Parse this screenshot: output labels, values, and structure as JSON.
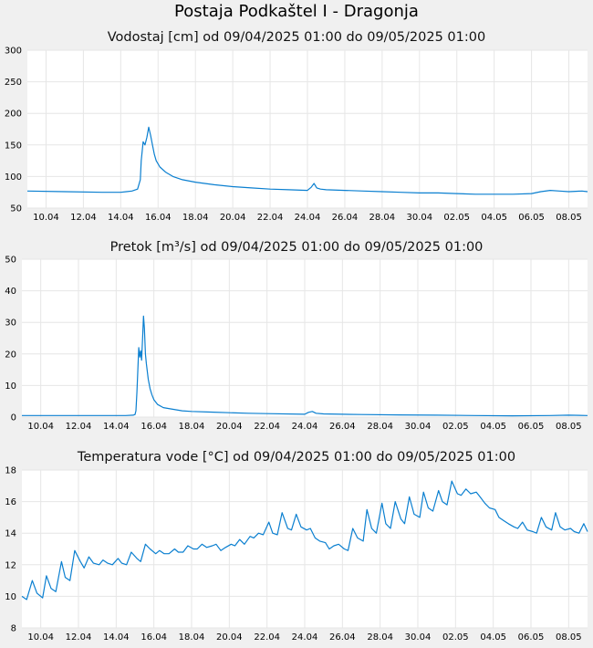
{
  "page": {
    "title": "Postaja Podkaštel I - Dragonja"
  },
  "chart_data": [
    {
      "type": "line",
      "title": "Vodostaj [cm] od 09/04/2025 01:00 do 09/05/2025 01:00",
      "x_ticks": [
        "10.04",
        "12.04",
        "14.04",
        "16.04",
        "18.04",
        "20.04",
        "22.04",
        "24.04",
        "26.04",
        "28.04",
        "30.04",
        "02.05",
        "04.05",
        "06.05",
        "08.05"
      ],
      "y_ticks": [
        "50",
        "100",
        "150",
        "200",
        "250",
        "300"
      ],
      "ylim": [
        50,
        300
      ],
      "grid": true,
      "color": "#0a7fd0",
      "series": [
        {
          "x": [
            0,
            2,
            4,
            5,
            5.3,
            5.6,
            5.9,
            6.05,
            6.1,
            6.2,
            6.3,
            6.4,
            6.5,
            6.6,
            6.7,
            6.8,
            6.9,
            7.1,
            7.4,
            7.8,
            8.3,
            9,
            10,
            11,
            12,
            13,
            14,
            15,
            15.2,
            15.35,
            15.5,
            15.7,
            16,
            17,
            18,
            19,
            20,
            21,
            22,
            23,
            24,
            25,
            26,
            27,
            27.5,
            28,
            28.5,
            29,
            29.7,
            30
          ],
          "y": [
            77,
            76,
            75,
            75,
            76,
            77,
            80,
            95,
            125,
            155,
            150,
            162,
            178,
            165,
            150,
            135,
            125,
            115,
            107,
            100,
            95,
            91,
            87,
            84,
            82,
            80,
            79,
            78,
            83,
            89,
            82,
            80,
            79,
            78,
            77,
            76,
            75,
            74,
            74,
            73,
            72,
            72,
            72,
            73,
            76,
            78,
            77,
            76,
            77,
            76
          ]
        }
      ]
    },
    {
      "type": "line",
      "title": "Pretok [m³/s] od 09/04/2025 01:00 do 09/05/2025 01:00",
      "x_ticks": [
        "10.04",
        "12.04",
        "14.04",
        "16.04",
        "18.04",
        "20.04",
        "22.04",
        "24.04",
        "26.04",
        "28.04",
        "30.04",
        "02.05",
        "04.05",
        "06.05",
        "08.05"
      ],
      "y_ticks": [
        "0",
        "10",
        "20",
        "30",
        "40",
        "50"
      ],
      "ylim": [
        0,
        50
      ],
      "grid": true,
      "color": "#0a7fd0",
      "series": [
        {
          "x": [
            0,
            2,
            4,
            5,
            5.5,
            5.9,
            6.0,
            6.05,
            6.1,
            6.15,
            6.2,
            6.25,
            6.3,
            6.35,
            6.4,
            6.45,
            6.5,
            6.55,
            6.6,
            6.7,
            6.8,
            6.9,
            7.0,
            7.2,
            7.5,
            8,
            8.5,
            9,
            10,
            11,
            12,
            13,
            15,
            15.2,
            15.4,
            15.6,
            16,
            17,
            18,
            20,
            22,
            24,
            26,
            28,
            29,
            30
          ],
          "y": [
            0.5,
            0.5,
            0.5,
            0.5,
            0.5,
            0.6,
            0.8,
            2,
            8,
            15,
            22,
            19,
            21,
            18,
            25,
            32,
            28,
            20,
            17,
            12,
            9,
            7,
            5.5,
            4,
            3,
            2.5,
            2,
            1.8,
            1.6,
            1.4,
            1.2,
            1.1,
            0.9,
            1.5,
            1.8,
            1.2,
            1.0,
            0.9,
            0.8,
            0.7,
            0.6,
            0.5,
            0.4,
            0.5,
            0.6,
            0.5
          ]
        }
      ]
    },
    {
      "type": "line",
      "title": "Temperatura vode [°C] od 09/04/2025 01:00 do 09/05/2025 01:00",
      "x_ticks": [
        "10.04",
        "12.04",
        "14.04",
        "16.04",
        "18.04",
        "20.04",
        "22.04",
        "24.04",
        "26.04",
        "28.04",
        "30.04",
        "02.05",
        "04.05",
        "06.05",
        "08.05"
      ],
      "y_ticks": [
        "8",
        "10",
        "12",
        "14",
        "16",
        "18"
      ],
      "ylim": [
        8,
        18
      ],
      "grid": true,
      "color": "#0a7fd0",
      "series": [
        {
          "x": [
            0,
            0.25,
            0.55,
            0.8,
            1.1,
            1.3,
            1.55,
            1.8,
            2.1,
            2.3,
            2.55,
            2.8,
            3.1,
            3.3,
            3.55,
            3.8,
            4.1,
            4.3,
            4.55,
            4.8,
            5.1,
            5.3,
            5.55,
            5.8,
            6.1,
            6.3,
            6.55,
            6.8,
            7.1,
            7.3,
            7.55,
            7.8,
            8.1,
            8.3,
            8.55,
            8.8,
            9.1,
            9.3,
            9.55,
            9.8,
            10.1,
            10.3,
            10.55,
            10.8,
            11.1,
            11.3,
            11.55,
            11.8,
            12.1,
            12.3,
            12.55,
            12.8,
            13.1,
            13.3,
            13.55,
            13.8,
            14.1,
            14.3,
            14.55,
            14.8,
            15.1,
            15.3,
            15.55,
            15.8,
            16.1,
            16.3,
            16.55,
            16.8,
            17.1,
            17.3,
            17.55,
            17.8,
            18.1,
            18.3,
            18.55,
            18.8,
            19.1,
            19.3,
            19.55,
            19.8,
            20.1,
            20.3,
            20.55,
            20.8,
            21.1,
            21.3,
            21.55,
            21.8,
            22.1,
            22.3,
            22.55,
            22.8,
            23.1,
            23.3,
            23.55,
            23.8,
            24.1,
            24.3,
            24.55,
            24.8,
            25.1,
            25.3,
            25.55,
            25.8,
            26.1,
            26.3,
            26.55,
            26.8,
            27.1,
            27.3,
            27.55,
            27.8,
            28.1,
            28.3,
            28.55,
            28.8,
            29.1,
            29.3,
            29.55,
            29.8,
            30
          ],
          "y": [
            10.0,
            9.8,
            11.0,
            10.2,
            9.9,
            11.3,
            10.5,
            10.3,
            12.2,
            11.2,
            11.0,
            12.9,
            12.2,
            11.8,
            12.5,
            12.1,
            12.0,
            12.3,
            12.1,
            12.0,
            12.4,
            12.1,
            12.0,
            12.8,
            12.4,
            12.2,
            13.3,
            13.0,
            12.7,
            12.9,
            12.7,
            12.7,
            13.0,
            12.8,
            12.8,
            13.2,
            13.0,
            13.0,
            13.3,
            13.1,
            13.2,
            13.3,
            12.9,
            13.1,
            13.3,
            13.2,
            13.6,
            13.3,
            13.8,
            13.7,
            14.0,
            13.9,
            14.7,
            14.0,
            13.9,
            15.3,
            14.3,
            14.2,
            15.2,
            14.4,
            14.2,
            14.3,
            13.7,
            13.5,
            13.4,
            13.0,
            13.2,
            13.3,
            13.0,
            12.9,
            14.3,
            13.7,
            13.5,
            15.5,
            14.3,
            14.0,
            15.9,
            14.6,
            14.3,
            16.0,
            14.9,
            14.6,
            16.3,
            15.2,
            15.0,
            16.6,
            15.6,
            15.4,
            16.7,
            16.0,
            15.8,
            17.3,
            16.5,
            16.4,
            16.8,
            16.5,
            16.6,
            16.3,
            15.9,
            15.6,
            15.5,
            15.0,
            14.8,
            14.6,
            14.4,
            14.3,
            14.7,
            14.2,
            14.1,
            14.0,
            15.0,
            14.4,
            14.2,
            15.3,
            14.4,
            14.2,
            14.3,
            14.1,
            14.0,
            14.6,
            14.1
          ]
        }
      ]
    }
  ]
}
